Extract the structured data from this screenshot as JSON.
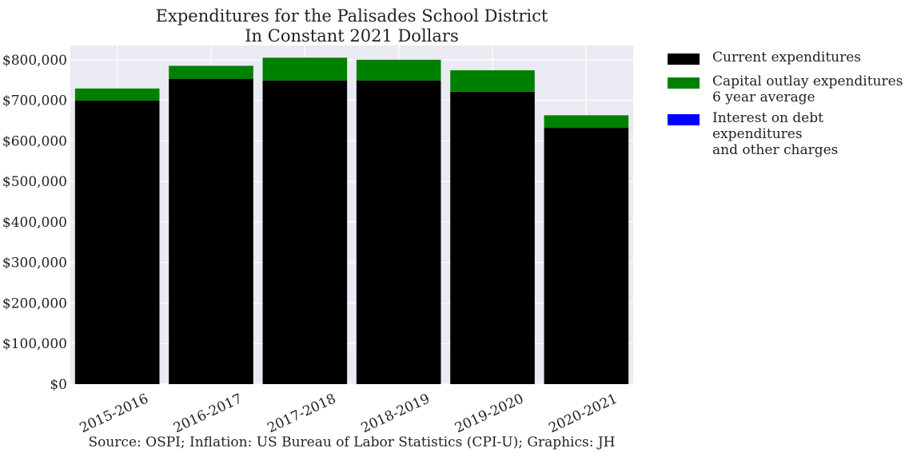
{
  "chart_data": {
    "type": "bar",
    "stacked": true,
    "title": "Expenditures for the Palisades School District",
    "subtitle": "In Constant 2021 Dollars",
    "categories": [
      "2015-2016",
      "2016-2017",
      "2017-2018",
      "2018-2019",
      "2019-2020",
      "2020-2021"
    ],
    "series": [
      {
        "name": "Current expenditures",
        "color": "#000000",
        "values": [
          699000,
          753000,
          749000,
          749000,
          721000,
          632000
        ]
      },
      {
        "name": "Capital outlay expenditures",
        "name_line2": "6 year average",
        "color": "#008000",
        "values": [
          30000,
          32000,
          56000,
          51000,
          53000,
          31000
        ]
      },
      {
        "name": "Interest on debt expenditures",
        "name_line2": "and other charges",
        "color": "#0000ff",
        "values": [
          0,
          0,
          0,
          0,
          0,
          0
        ]
      }
    ],
    "yticks": [
      "$0",
      "$100,000",
      "$200,000",
      "$300,000",
      "$400,000",
      "$500,000",
      "$600,000",
      "$700,000",
      "$800,000"
    ],
    "ylim": [
      0,
      835000
    ],
    "grid": true,
    "legend": "outside-right",
    "source": "Source: OSPI; Inflation: US Bureau of Labor Statistics (CPI-U); Graphics: JH"
  }
}
